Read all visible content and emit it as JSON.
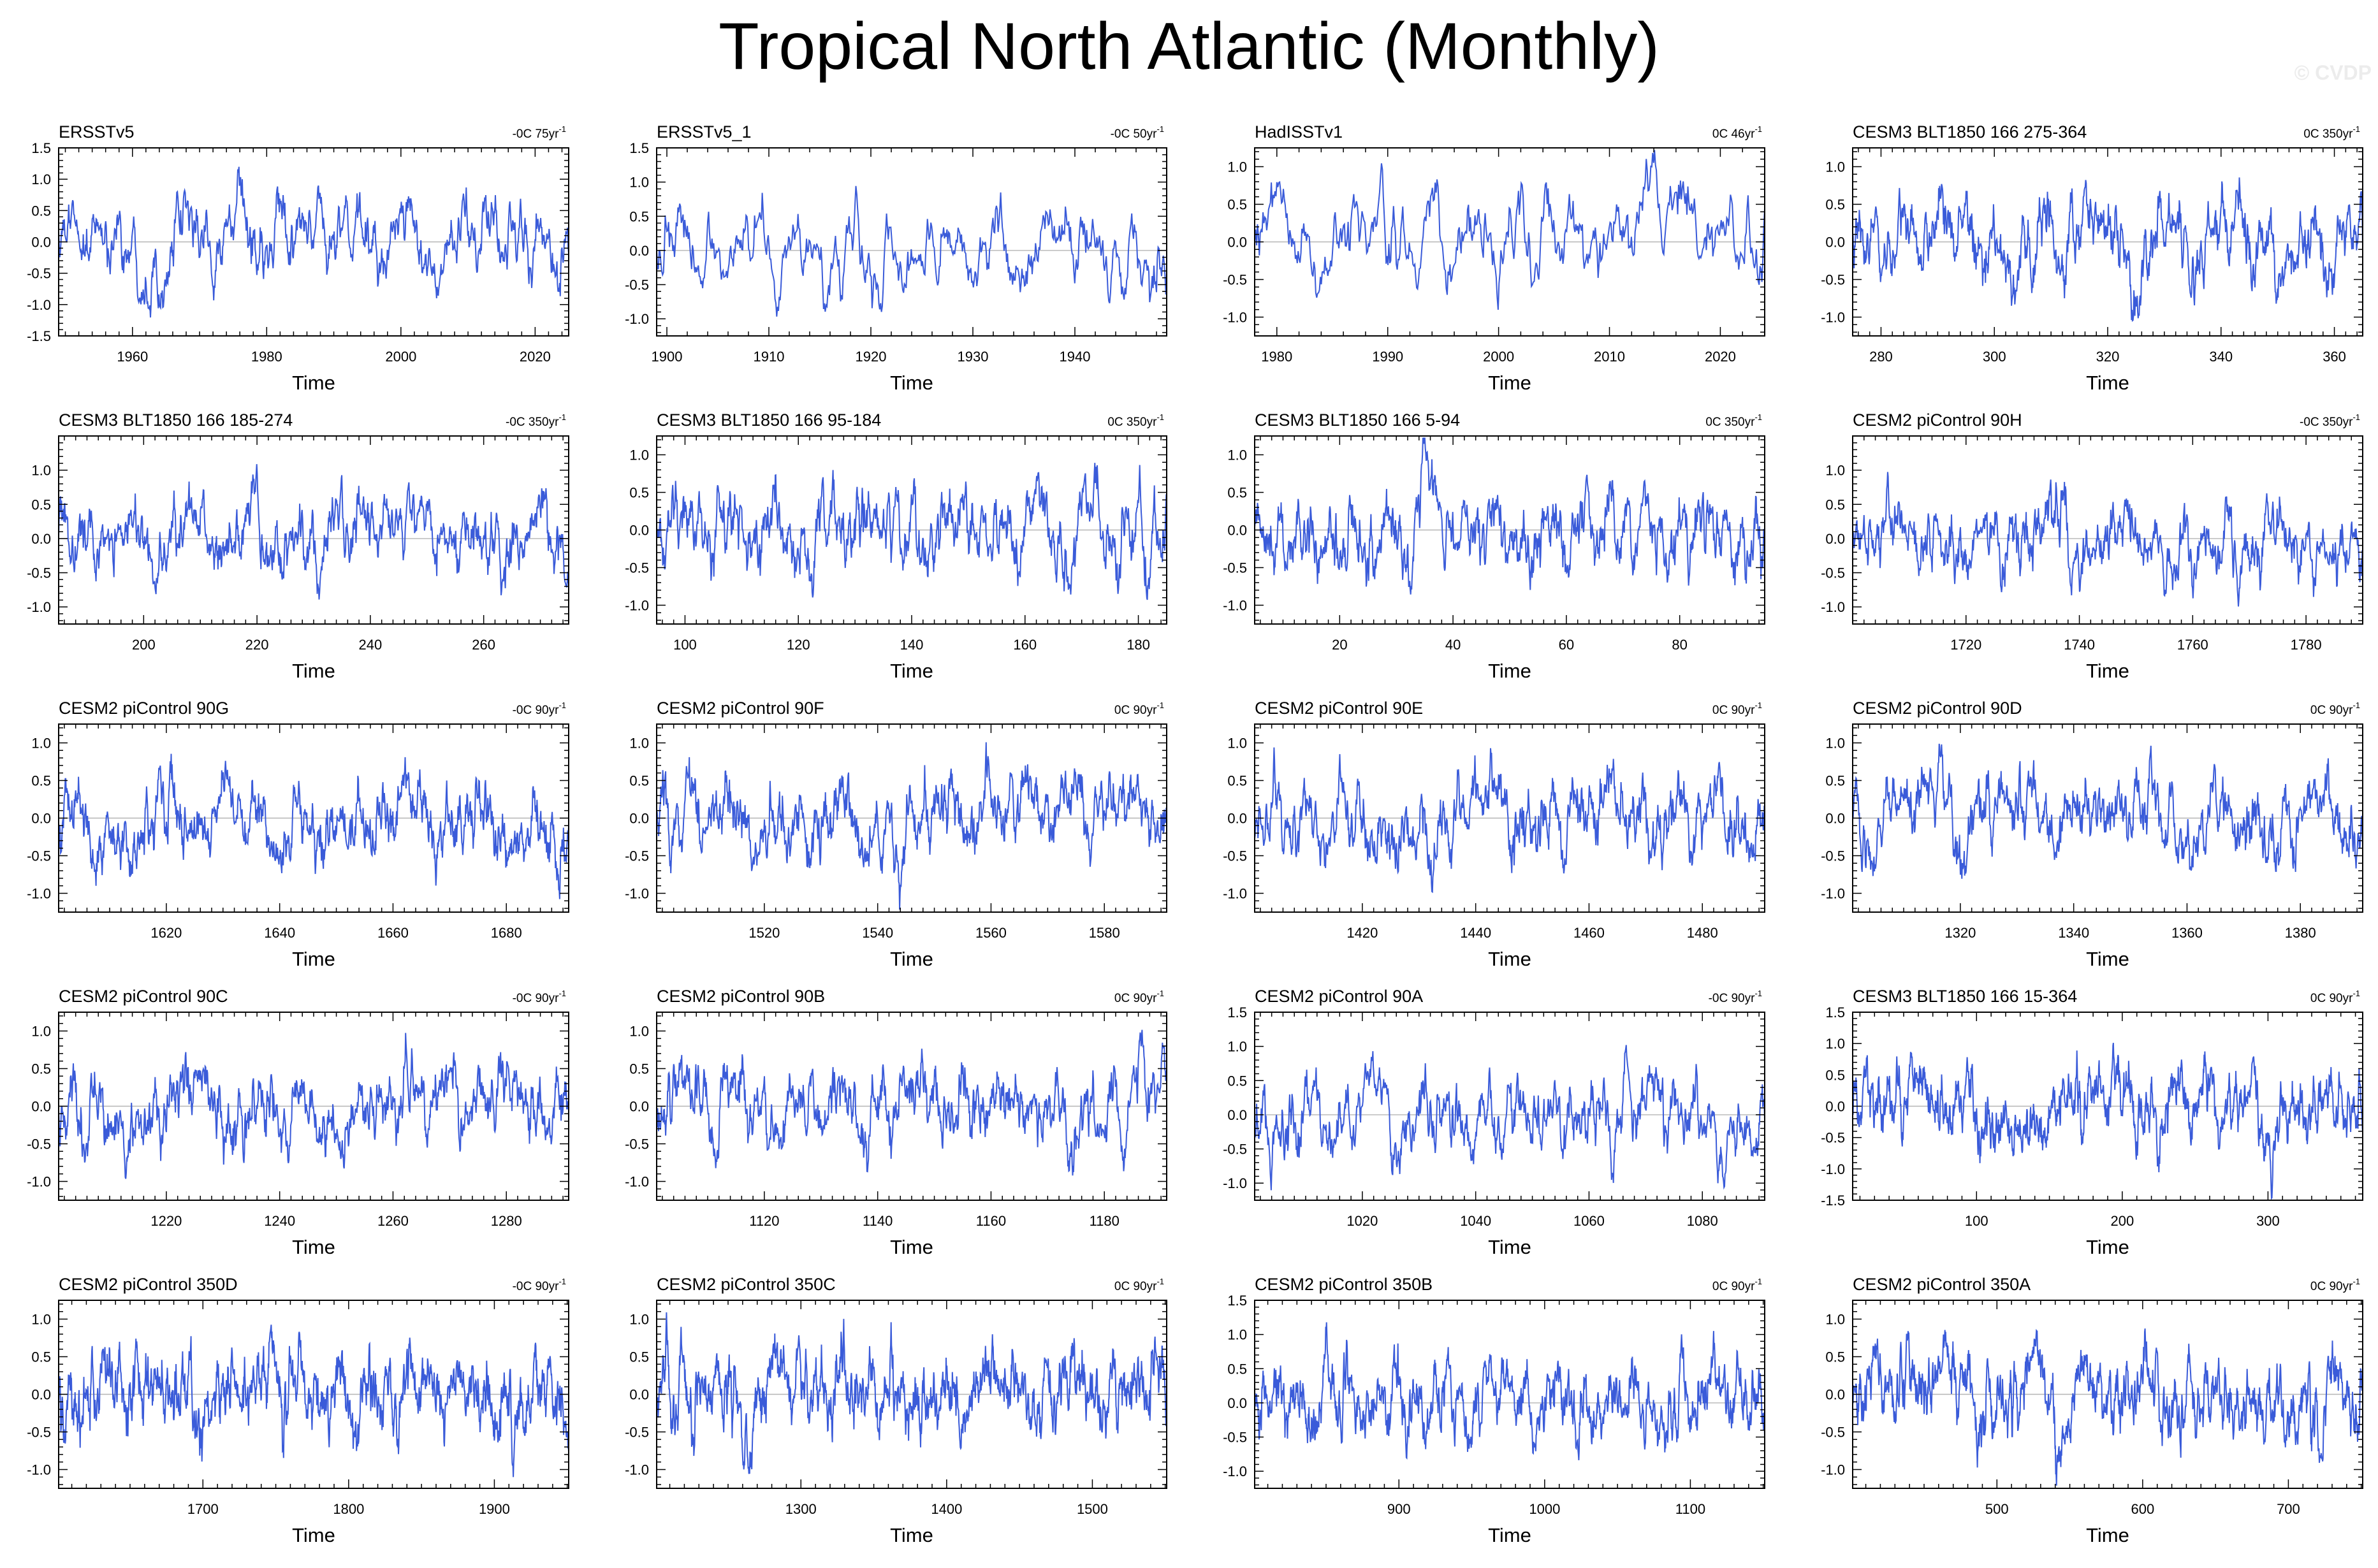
{
  "title": "Tropical North Atlantic (Monthly)",
  "watermark": "© CVDP",
  "styles": {
    "line_color": "#3a5bd9",
    "zero_line_color": "#b5b5b5",
    "axis_color": "#000000"
  },
  "chart_data": [
    {
      "type": "line",
      "title": "ERSSTv5",
      "trend": "-0C 75yr",
      "trend_unit": "-1",
      "xlabel": "Time",
      "xlim": [
        1949,
        2025
      ],
      "ylim": [
        -1.5,
        1.5
      ],
      "yticks": [
        -1.5,
        -1.0,
        -0.5,
        0.0,
        0.5,
        1.0,
        1.5
      ],
      "xticks": [
        1960,
        1980,
        2000,
        2020
      ],
      "n": 912,
      "amp": 0.38
    },
    {
      "type": "line",
      "title": "ERSSTv5_1",
      "trend": "-0C 50yr",
      "trend_unit": "-1",
      "xlabel": "Time",
      "xlim": [
        1899,
        1949
      ],
      "ylim": [
        -1.25,
        1.5
      ],
      "yticks": [
        -1.0,
        -0.5,
        0.0,
        0.5,
        1.0,
        1.5
      ],
      "xticks": [
        1900,
        1910,
        1920,
        1930,
        1940
      ],
      "n": 600,
      "amp": 0.38
    },
    {
      "type": "line",
      "title": "HadISSTv1",
      "trend": "0C 46yr",
      "trend_unit": "-1",
      "xlabel": "Time",
      "xlim": [
        1978,
        2024
      ],
      "ylim": [
        -1.25,
        1.25
      ],
      "yticks": [
        -1.0,
        -0.5,
        0.0,
        0.5,
        1.0
      ],
      "xticks": [
        1980,
        1990,
        2000,
        2010,
        2020
      ],
      "n": 552,
      "amp": 0.38
    },
    {
      "type": "line",
      "title": "CESM3 BLT1850 166 275-364",
      "trend": "0C 350yr",
      "trend_unit": "-1",
      "xlabel": "Time",
      "xlim": [
        275,
        365
      ],
      "ylim": [
        -1.25,
        1.25
      ],
      "yticks": [
        -1.0,
        -0.5,
        0.0,
        0.5,
        1.0
      ],
      "xticks": [
        280,
        300,
        320,
        340,
        360
      ],
      "n": 1080,
      "amp": 0.34
    },
    {
      "type": "line",
      "title": "CESM3 BLT1850 166 185-274",
      "trend": "-0C 350yr",
      "trend_unit": "-1",
      "xlabel": "Time",
      "xlim": [
        185,
        275
      ],
      "ylim": [
        -1.25,
        1.5
      ],
      "yticks": [
        -1.0,
        -0.5,
        0.0,
        0.5,
        1.0
      ],
      "xticks": [
        200,
        220,
        240,
        260
      ],
      "n": 1080,
      "amp": 0.34
    },
    {
      "type": "line",
      "title": "CESM3 BLT1850 166 95-184",
      "trend": "0C 350yr",
      "trend_unit": "-1",
      "xlabel": "Time",
      "xlim": [
        95,
        185
      ],
      "ylim": [
        -1.25,
        1.25
      ],
      "yticks": [
        -1.0,
        -0.5,
        0.0,
        0.5,
        1.0
      ],
      "xticks": [
        100,
        120,
        140,
        160,
        180
      ],
      "n": 1080,
      "amp": 0.34
    },
    {
      "type": "line",
      "title": "CESM3 BLT1850 166 5-94",
      "trend": "0C 350yr",
      "trend_unit": "-1",
      "xlabel": "Time",
      "xlim": [
        5,
        95
      ],
      "ylim": [
        -1.25,
        1.25
      ],
      "yticks": [
        -1.0,
        -0.5,
        0.0,
        0.5,
        1.0
      ],
      "xticks": [
        20,
        40,
        60,
        80
      ],
      "n": 1080,
      "amp": 0.34
    },
    {
      "type": "line",
      "title": "CESM2 piControl 90H",
      "trend": "-0C 350yr",
      "trend_unit": "-1",
      "xlabel": "Time",
      "xlim": [
        1700,
        1790
      ],
      "ylim": [
        -1.25,
        1.5
      ],
      "yticks": [
        -1.0,
        -0.5,
        0.0,
        0.5,
        1.0
      ],
      "xticks": [
        1720,
        1740,
        1760,
        1780
      ],
      "n": 1080,
      "amp": 0.34
    },
    {
      "type": "line",
      "title": "CESM2 piControl 90G",
      "trend": "-0C 90yr",
      "trend_unit": "-1",
      "xlabel": "Time",
      "xlim": [
        1601,
        1691
      ],
      "ylim": [
        -1.25,
        1.25
      ],
      "yticks": [
        -1.0,
        -0.5,
        0.0,
        0.5,
        1.0
      ],
      "xticks": [
        1620,
        1640,
        1660,
        1680
      ],
      "n": 1080,
      "amp": 0.34
    },
    {
      "type": "line",
      "title": "CESM2 piControl 90F",
      "trend": "0C 90yr",
      "trend_unit": "-1",
      "xlabel": "Time",
      "xlim": [
        1501,
        1591
      ],
      "ylim": [
        -1.25,
        1.25
      ],
      "yticks": [
        -1.0,
        -0.5,
        0.0,
        0.5,
        1.0
      ],
      "xticks": [
        1520,
        1540,
        1560,
        1580
      ],
      "n": 1080,
      "amp": 0.34
    },
    {
      "type": "line",
      "title": "CESM2 piControl 90E",
      "trend": "0C 90yr",
      "trend_unit": "-1",
      "xlabel": "Time",
      "xlim": [
        1401,
        1491
      ],
      "ylim": [
        -1.25,
        1.25
      ],
      "yticks": [
        -1.0,
        -0.5,
        0.0,
        0.5,
        1.0
      ],
      "xticks": [
        1420,
        1440,
        1460,
        1480
      ],
      "n": 1080,
      "amp": 0.34
    },
    {
      "type": "line",
      "title": "CESM2 piControl 90D",
      "trend": "0C 90yr",
      "trend_unit": "-1",
      "xlabel": "Time",
      "xlim": [
        1301,
        1391
      ],
      "ylim": [
        -1.25,
        1.25
      ],
      "yticks": [
        -1.0,
        -0.5,
        0.0,
        0.5,
        1.0
      ],
      "xticks": [
        1320,
        1340,
        1360,
        1380
      ],
      "n": 1080,
      "amp": 0.34
    },
    {
      "type": "line",
      "title": "CESM2 piControl 90C",
      "trend": "-0C 90yr",
      "trend_unit": "-1",
      "xlabel": "Time",
      "xlim": [
        1201,
        1291
      ],
      "ylim": [
        -1.25,
        1.25
      ],
      "yticks": [
        -1.0,
        -0.5,
        0.0,
        0.5,
        1.0
      ],
      "xticks": [
        1220,
        1240,
        1260,
        1280
      ],
      "n": 1080,
      "amp": 0.34
    },
    {
      "type": "line",
      "title": "CESM2 piControl 90B",
      "trend": "0C 90yr",
      "trend_unit": "-1",
      "xlabel": "Time",
      "xlim": [
        1101,
        1191
      ],
      "ylim": [
        -1.25,
        1.25
      ],
      "yticks": [
        -1.0,
        -0.5,
        0.0,
        0.5,
        1.0
      ],
      "xticks": [
        1120,
        1140,
        1160,
        1180
      ],
      "n": 1080,
      "amp": 0.34
    },
    {
      "type": "line",
      "title": "CESM2 piControl 90A",
      "trend": "-0C 90yr",
      "trend_unit": "-1",
      "xlabel": "Time",
      "xlim": [
        1001,
        1091
      ],
      "ylim": [
        -1.25,
        1.5
      ],
      "yticks": [
        -1.0,
        -0.5,
        0.0,
        0.5,
        1.0,
        1.5
      ],
      "xticks": [
        1020,
        1040,
        1060,
        1080
      ],
      "n": 1080,
      "amp": 0.34
    },
    {
      "type": "line",
      "title": "CESM3 BLT1850 166 15-364",
      "trend": "0C 90yr",
      "trend_unit": "-1",
      "xlabel": "Time",
      "xlim": [
        15,
        365
      ],
      "ylim": [
        -1.5,
        1.5
      ],
      "yticks": [
        -1.5,
        -1.0,
        -0.5,
        0.0,
        0.5,
        1.0,
        1.5
      ],
      "xticks": [
        100,
        200,
        300
      ],
      "n": 1400,
      "amp": 0.36
    },
    {
      "type": "line",
      "title": "CESM2 piControl 350D",
      "trend": "-0C 90yr",
      "trend_unit": "-1",
      "xlabel": "Time",
      "xlim": [
        1601,
        1951
      ],
      "ylim": [
        -1.25,
        1.25
      ],
      "yticks": [
        -1.0,
        -0.5,
        0.0,
        0.5,
        1.0
      ],
      "xticks": [
        1700,
        1800,
        1900
      ],
      "n": 1400,
      "amp": 0.34
    },
    {
      "type": "line",
      "title": "CESM2 piControl 350C",
      "trend": "0C 90yr",
      "trend_unit": "-1",
      "xlabel": "Time",
      "xlim": [
        1201,
        1551
      ],
      "ylim": [
        -1.25,
        1.25
      ],
      "yticks": [
        -1.0,
        -0.5,
        0.0,
        0.5,
        1.0
      ],
      "xticks": [
        1300,
        1400,
        1500
      ],
      "n": 1400,
      "amp": 0.34
    },
    {
      "type": "line",
      "title": "CESM2 piControl 350B",
      "trend": "0C 90yr",
      "trend_unit": "-1",
      "xlabel": "Time",
      "xlim": [
        801,
        1151
      ],
      "ylim": [
        -1.25,
        1.5
      ],
      "yticks": [
        -1.0,
        -0.5,
        0.0,
        0.5,
        1.0,
        1.5
      ],
      "xticks": [
        900,
        1000,
        1100
      ],
      "n": 1400,
      "amp": 0.34
    },
    {
      "type": "line",
      "title": "CESM2 piControl 350A",
      "trend": "0C 90yr",
      "trend_unit": "-1",
      "xlabel": "Time",
      "xlim": [
        401,
        751
      ],
      "ylim": [
        -1.25,
        1.25
      ],
      "yticks": [
        -1.0,
        -0.5,
        0.0,
        0.5,
        1.0
      ],
      "xticks": [
        500,
        600,
        700
      ],
      "n": 1400,
      "amp": 0.34
    }
  ]
}
